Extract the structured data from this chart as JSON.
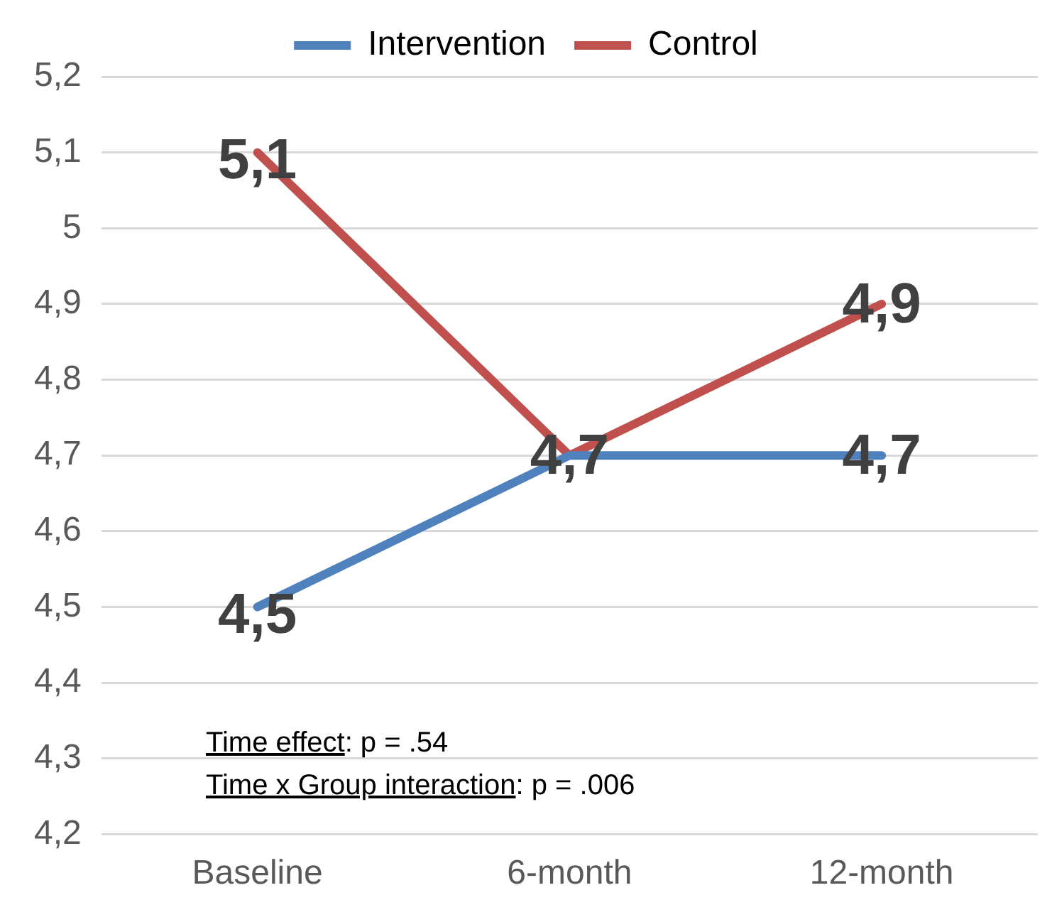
{
  "chart_data": {
    "type": "line",
    "categories": [
      "Baseline",
      "6-month",
      "12-month"
    ],
    "series": [
      {
        "name": "Intervention",
        "color": "#4f81bd",
        "values": [
          4.5,
          4.7,
          4.7
        ],
        "value_labels": [
          "4,5",
          "4,7",
          "4,7"
        ]
      },
      {
        "name": "Control",
        "color": "#c0504d",
        "values": [
          5.1,
          4.7,
          4.9
        ],
        "value_labels": [
          "5,1",
          null,
          "4,9"
        ]
      }
    ],
    "ylim": [
      4.2,
      5.2
    ],
    "yticks": [
      {
        "value": 4.2,
        "label": "4,2"
      },
      {
        "value": 4.3,
        "label": "4,3"
      },
      {
        "value": 4.4,
        "label": "4,4"
      },
      {
        "value": 4.5,
        "label": "4,5"
      },
      {
        "value": 4.6,
        "label": "4,6"
      },
      {
        "value": 4.7,
        "label": "4,7"
      },
      {
        "value": 4.8,
        "label": "4,8"
      },
      {
        "value": 4.9,
        "label": "4,9"
      },
      5,
      {
        "value": 5.1,
        "label": "5,1"
      },
      {
        "value": 5.2,
        "label": "5,2"
      }
    ],
    "grid": "y",
    "legend": "top",
    "marker": "none",
    "line_style": "solid",
    "annotations": [
      "Time effect: p = .54",
      "Time x Group interaction: p = .006"
    ]
  }
}
